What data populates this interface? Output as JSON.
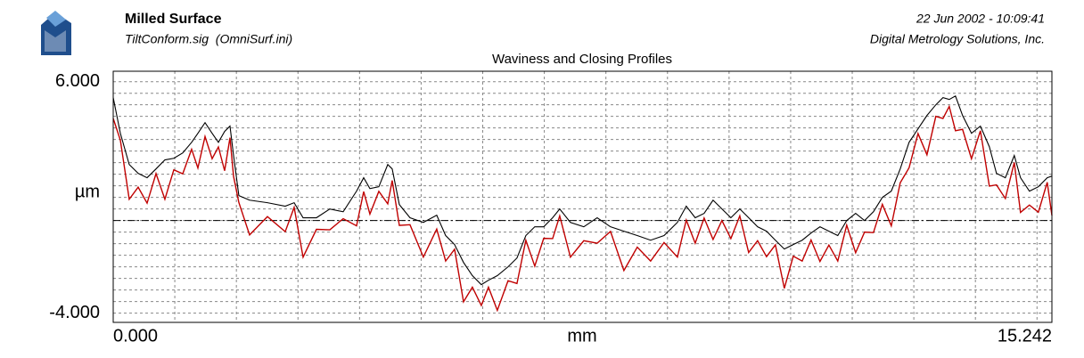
{
  "header": {
    "title": "Milled Surface",
    "file": "TiltConform.sig  (OmniSurf.ini)",
    "date": "22 Jun 2002 - 10:09:41",
    "company": "Digital Metrology Solutions, Inc."
  },
  "chart_data": {
    "type": "line",
    "title": "Waviness and Closing Profiles",
    "xlabel": "mm",
    "ylabel": "µm",
    "xlim": [
      0,
      15.242
    ],
    "ylim": [
      -4.4,
      6.45
    ],
    "xticks": [
      {
        "value": 0,
        "label": "0.000"
      },
      {
        "value": 15.242,
        "label": "15.242"
      }
    ],
    "yticks": [
      {
        "value": 6,
        "label": "6.000"
      },
      {
        "value": -4,
        "label": "-4.000"
      }
    ],
    "xgrid": [
      1,
      2,
      3,
      4,
      5,
      6,
      7,
      8,
      9,
      10,
      11,
      12,
      13,
      14,
      15
    ],
    "ygrid": [
      -4,
      -3.5,
      -3,
      -2.5,
      -2,
      -1.5,
      -1,
      -0.5,
      0,
      0.5,
      1,
      1.5,
      2,
      2.5,
      3,
      3.5,
      4,
      4.5,
      5,
      5.5,
      6
    ],
    "reference_line": 0,
    "x": [
      0,
      0.116,
      0.26,
      0.405,
      0.55,
      0.695,
      0.839,
      0.984,
      1.129,
      1.273,
      1.375,
      1.491,
      1.606,
      1.708,
      1.809,
      1.896,
      1.954,
      2.04,
      2.214,
      2.504,
      2.793,
      2.938,
      3.083,
      3.3,
      3.517,
      3.734,
      3.951,
      4.067,
      4.168,
      4.313,
      4.458,
      4.53,
      4.646,
      4.819,
      5.036,
      5.253,
      5.398,
      5.543,
      5.688,
      5.832,
      5.977,
      6.093,
      6.237,
      6.411,
      6.556,
      6.7,
      6.845,
      6.99,
      7.135,
      7.25,
      7.424,
      7.641,
      7.858,
      8.075,
      8.292,
      8.509,
      8.726,
      8.944,
      9.161,
      9.305,
      9.45,
      9.595,
      9.74,
      9.884,
      10.029,
      10.174,
      10.318,
      10.463,
      10.608,
      10.752,
      10.897,
      11.042,
      11.187,
      11.331,
      11.476,
      11.621,
      11.765,
      11.91,
      12.055,
      12.2,
      12.344,
      12.489,
      12.634,
      12.779,
      12.923,
      13.068,
      13.213,
      13.357,
      13.473,
      13.575,
      13.676,
      13.791,
      13.936,
      14.081,
      14.226,
      14.342,
      14.486,
      14.631,
      14.732,
      14.877,
      15.022,
      15.166,
      15.242
    ],
    "series": [
      {
        "color": "#c00000",
        "values": [
          4.41,
          3.47,
          0.92,
          1.44,
          0.75,
          2.03,
          0.92,
          2.19,
          2.02,
          3.08,
          2.27,
          3.63,
          2.67,
          3.18,
          2.15,
          3.58,
          1.91,
          0.78,
          -0.62,
          0.17,
          -0.48,
          0.57,
          -1.58,
          -0.38,
          -0.4,
          0.08,
          -0.23,
          1.25,
          0.28,
          1.26,
          0.72,
          1.73,
          -0.21,
          -0.18,
          -1.58,
          -0.37,
          -1.75,
          -1.24,
          -3.51,
          -2.88,
          -3.67,
          -2.88,
          -3.88,
          -2.6,
          -2.72,
          -0.85,
          -1.97,
          -0.77,
          -0.78,
          0.2,
          -1.58,
          -0.87,
          -0.98,
          -0.47,
          -2.16,
          -1.15,
          -1.75,
          -0.95,
          -1.58,
          0.02,
          -0.98,
          0.11,
          -0.82,
          0,
          -0.78,
          0.2,
          -1.38,
          -0.87,
          -1.56,
          -1.05,
          -2.93,
          -1.54,
          -1.75,
          -0.84,
          -1.77,
          -1.06,
          -1.75,
          -0.2,
          -1.39,
          -0.5,
          -0.52,
          0.7,
          -0.23,
          1.63,
          2.28,
          3.76,
          2.84,
          4.5,
          4.41,
          4.93,
          3.88,
          3.94,
          2.67,
          3.88,
          1.49,
          1.54,
          0.95,
          2.51,
          0.35,
          0.67,
          0.36,
          1.65,
          0.22
        ]
      },
      {
        "color": "#000000",
        "values": [
          5.31,
          3.77,
          2.42,
          2.04,
          1.85,
          2.23,
          2.62,
          2.69,
          2.92,
          3.38,
          3.77,
          4.23,
          3.77,
          3.38,
          3.85,
          4.08,
          2.81,
          1.08,
          0.88,
          0.77,
          0.62,
          0.77,
          0.12,
          0.12,
          0.5,
          0.38,
          1.27,
          1.85,
          1.38,
          1.46,
          2.42,
          2.23,
          0.69,
          0.12,
          -0.08,
          0.23,
          -0.65,
          -1.04,
          -1.81,
          -2.38,
          -2.77,
          -2.58,
          -2.38,
          -2,
          -1.62,
          -0.65,
          -0.27,
          -0.27,
          0.12,
          0.5,
          -0.08,
          -0.27,
          0.12,
          -0.27,
          -0.46,
          -0.65,
          -0.85,
          -0.65,
          -0.08,
          0.62,
          0.12,
          0.31,
          0.88,
          0.5,
          0.12,
          0.5,
          0.12,
          -0.27,
          -0.46,
          -0.85,
          -1.23,
          -1.04,
          -0.85,
          -0.54,
          -0.27,
          -0.46,
          -0.65,
          0,
          0.31,
          0,
          0.38,
          1,
          1.27,
          2.23,
          3.38,
          3.96,
          4.54,
          5,
          5.31,
          5.23,
          5.38,
          4.54,
          3.77,
          4.08,
          3.19,
          2.04,
          1.85,
          2.81,
          1.85,
          1.27,
          1.46,
          1.85,
          1.92
        ]
      }
    ]
  }
}
